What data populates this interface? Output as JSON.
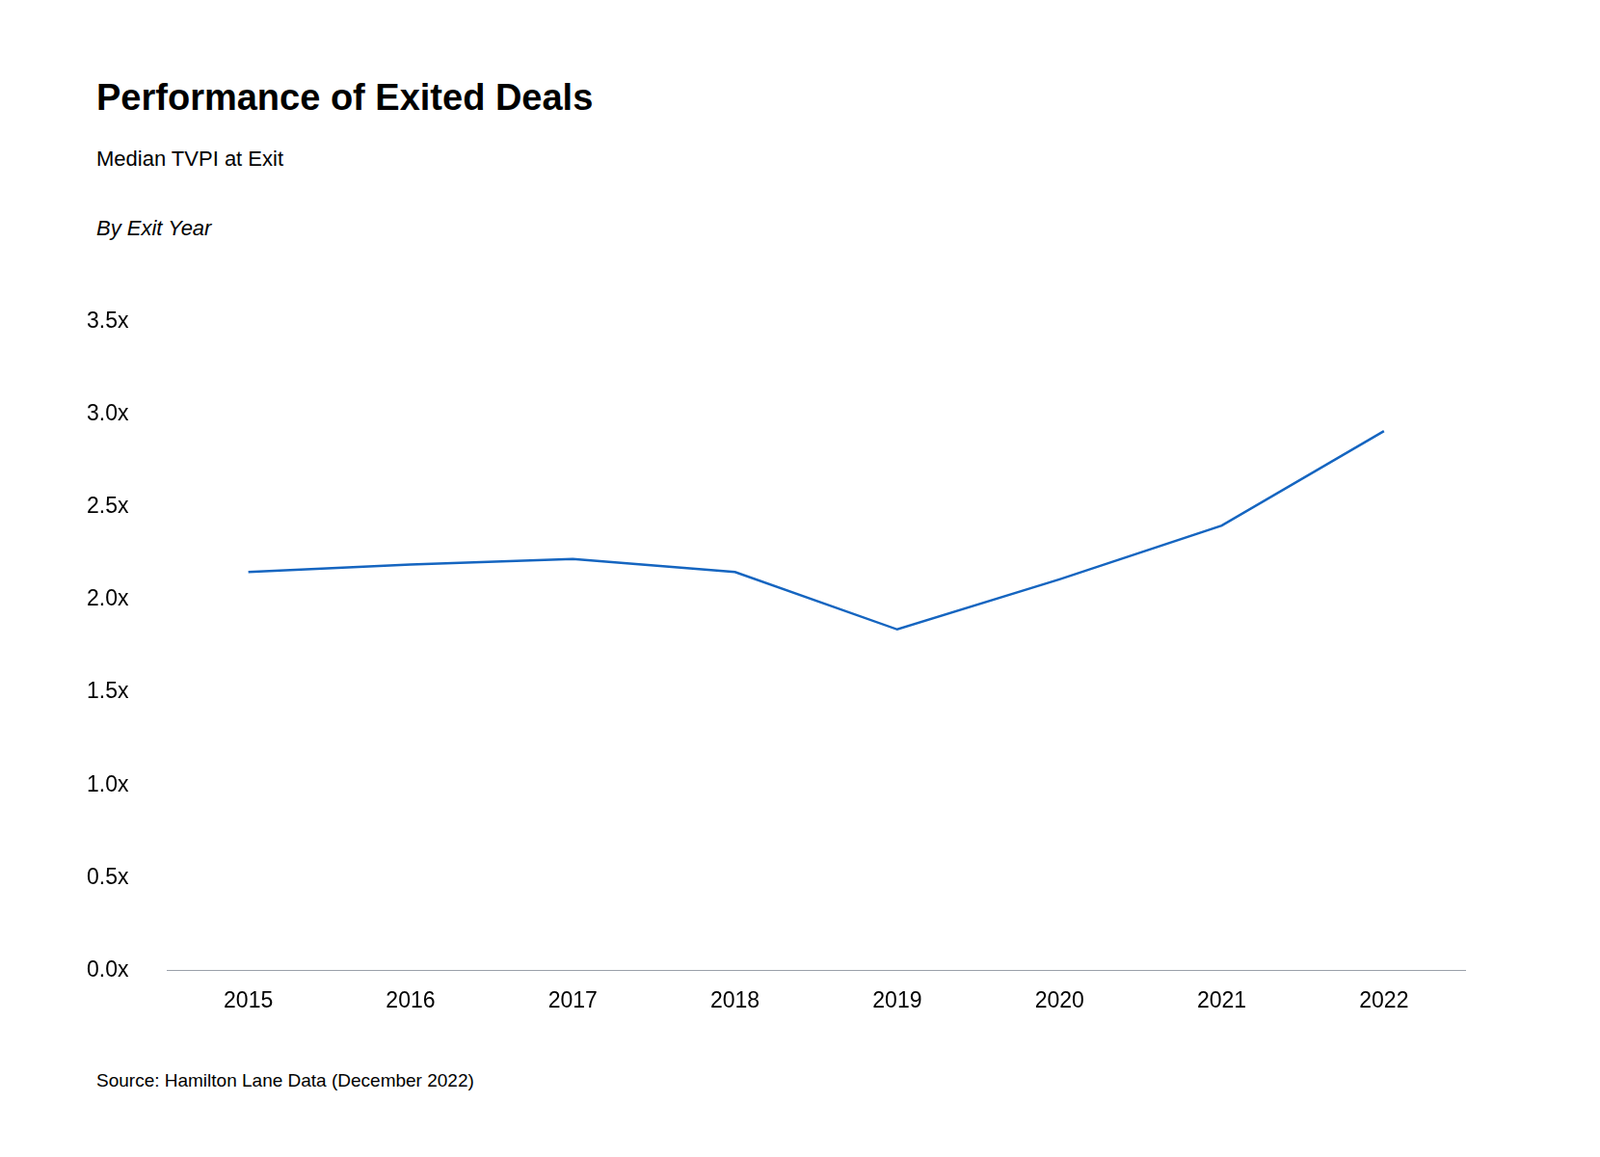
{
  "chart_data": {
    "type": "line",
    "title": "Performance of Exited Deals",
    "subtitle": "Median TVPI at Exit",
    "note": "By Exit Year",
    "source": "Source: Hamilton Lane Data (December 2022)",
    "categories": [
      "2015",
      "2016",
      "2017",
      "2018",
      "2019",
      "2020",
      "2021",
      "2022"
    ],
    "values": [
      2.15,
      2.19,
      2.22,
      2.15,
      1.84,
      2.11,
      2.4,
      2.91
    ],
    "color": "#1565c0",
    "ylim": [
      0,
      3.5
    ],
    "yticks": [
      {
        "value": 0,
        "label": "0.0x"
      },
      {
        "value": 0.5,
        "label": "0.5x"
      },
      {
        "value": 1,
        "label": "1.0x"
      },
      {
        "value": 1.5,
        "label": "1.5x"
      },
      {
        "value": 2,
        "label": "2.0x"
      },
      {
        "value": 2.5,
        "label": "2.5x"
      },
      {
        "value": 3,
        "label": "3.0x"
      },
      {
        "value": 3.5,
        "label": "3.5x"
      }
    ],
    "grid": false
  }
}
